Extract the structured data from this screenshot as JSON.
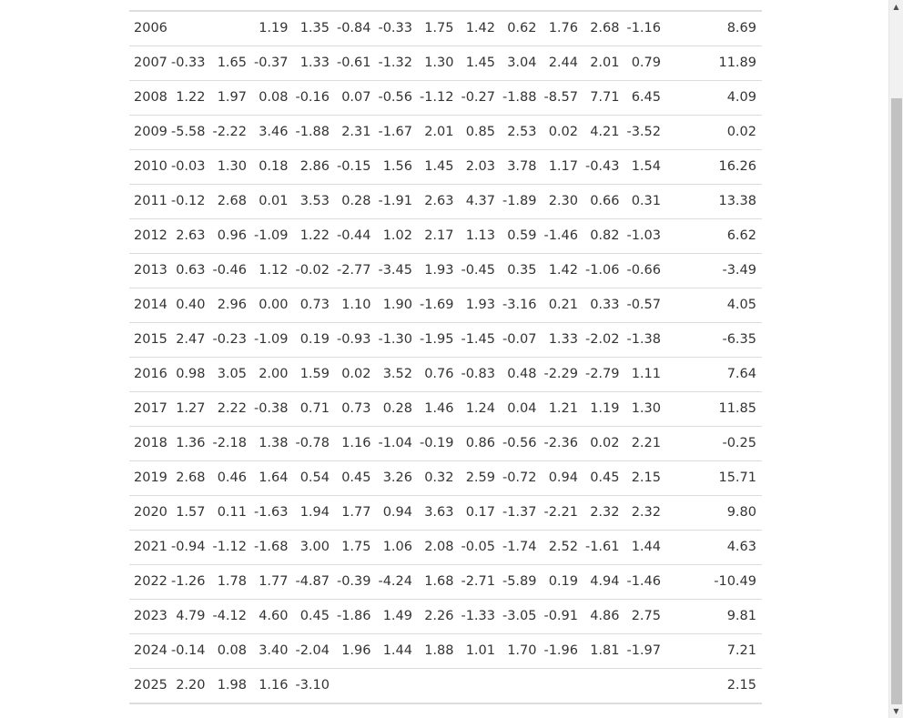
{
  "table": {
    "rows": [
      {
        "year": "2006",
        "months": [
          "",
          "",
          "1.19",
          "1.35",
          "-0.84",
          "-0.33",
          "1.75",
          "1.42",
          "0.62",
          "1.76",
          "2.68",
          "-1.16"
        ],
        "total": "8.69"
      },
      {
        "year": "2007",
        "months": [
          "-0.33",
          "1.65",
          "-0.37",
          "1.33",
          "-0.61",
          "-1.32",
          "1.30",
          "1.45",
          "3.04",
          "2.44",
          "2.01",
          "0.79"
        ],
        "total": "11.89"
      },
      {
        "year": "2008",
        "months": [
          "1.22",
          "1.97",
          "0.08",
          "-0.16",
          "0.07",
          "-0.56",
          "-1.12",
          "-0.27",
          "-1.88",
          "-8.57",
          "7.71",
          "6.45"
        ],
        "total": "4.09"
      },
      {
        "year": "2009",
        "months": [
          "-5.58",
          "-2.22",
          "3.46",
          "-1.88",
          "2.31",
          "-1.67",
          "2.01",
          "0.85",
          "2.53",
          "0.02",
          "4.21",
          "-3.52"
        ],
        "total": "0.02"
      },
      {
        "year": "2010",
        "months": [
          "-0.03",
          "1.30",
          "0.18",
          "2.86",
          "-0.15",
          "1.56",
          "1.45",
          "2.03",
          "3.78",
          "1.17",
          "-0.43",
          "1.54"
        ],
        "total": "16.26"
      },
      {
        "year": "2011",
        "months": [
          "-0.12",
          "2.68",
          "0.01",
          "3.53",
          "0.28",
          "-1.91",
          "2.63",
          "4.37",
          "-1.89",
          "2.30",
          "0.66",
          "0.31"
        ],
        "total": "13.38"
      },
      {
        "year": "2012",
        "months": [
          "2.63",
          "0.96",
          "-1.09",
          "1.22",
          "-0.44",
          "1.02",
          "2.17",
          "1.13",
          "0.59",
          "-1.46",
          "0.82",
          "-1.03"
        ],
        "total": "6.62"
      },
      {
        "year": "2013",
        "months": [
          "0.63",
          "-0.46",
          "1.12",
          "-0.02",
          "-2.77",
          "-3.45",
          "1.93",
          "-0.45",
          "0.35",
          "1.42",
          "-1.06",
          "-0.66"
        ],
        "total": "-3.49"
      },
      {
        "year": "2014",
        "months": [
          "0.40",
          "2.96",
          "0.00",
          "0.73",
          "1.10",
          "1.90",
          "-1.69",
          "1.93",
          "-3.16",
          "0.21",
          "0.33",
          "-0.57"
        ],
        "total": "4.05"
      },
      {
        "year": "2015",
        "months": [
          "2.47",
          "-0.23",
          "-1.09",
          "0.19",
          "-0.93",
          "-1.30",
          "-1.95",
          "-1.45",
          "-0.07",
          "1.33",
          "-2.02",
          "-1.38"
        ],
        "total": "-6.35"
      },
      {
        "year": "2016",
        "months": [
          "0.98",
          "3.05",
          "2.00",
          "1.59",
          "0.02",
          "3.52",
          "0.76",
          "-0.83",
          "0.48",
          "-2.29",
          "-2.79",
          "1.11"
        ],
        "total": "7.64"
      },
      {
        "year": "2017",
        "months": [
          "1.27",
          "2.22",
          "-0.38",
          "0.71",
          "0.73",
          "0.28",
          "1.46",
          "1.24",
          "0.04",
          "1.21",
          "1.19",
          "1.30"
        ],
        "total": "11.85"
      },
      {
        "year": "2018",
        "months": [
          "1.36",
          "-2.18",
          "1.38",
          "-0.78",
          "1.16",
          "-1.04",
          "-0.19",
          "0.86",
          "-0.56",
          "-2.36",
          "0.02",
          "2.21"
        ],
        "total": "-0.25"
      },
      {
        "year": "2019",
        "months": [
          "2.68",
          "0.46",
          "1.64",
          "0.54",
          "0.45",
          "3.26",
          "0.32",
          "2.59",
          "-0.72",
          "0.94",
          "0.45",
          "2.15"
        ],
        "total": "15.71"
      },
      {
        "year": "2020",
        "months": [
          "1.57",
          "0.11",
          "-1.63",
          "1.94",
          "1.77",
          "0.94",
          "3.63",
          "0.17",
          "-1.37",
          "-2.21",
          "2.32",
          "2.32"
        ],
        "total": "9.80"
      },
      {
        "year": "2021",
        "months": [
          "-0.94",
          "-1.12",
          "-1.68",
          "3.00",
          "1.75",
          "1.06",
          "2.08",
          "-0.05",
          "-1.74",
          "2.52",
          "-1.61",
          "1.44"
        ],
        "total": "4.63"
      },
      {
        "year": "2022",
        "months": [
          "-1.26",
          "1.78",
          "1.77",
          "-4.87",
          "-0.39",
          "-4.24",
          "1.68",
          "-2.71",
          "-5.89",
          "0.19",
          "4.94",
          "-1.46"
        ],
        "total": "-10.49"
      },
      {
        "year": "2023",
        "months": [
          "4.79",
          "-4.12",
          "4.60",
          "0.45",
          "-1.86",
          "1.49",
          "2.26",
          "-1.33",
          "-3.05",
          "-0.91",
          "4.86",
          "2.75"
        ],
        "total": "9.81"
      },
      {
        "year": "2024",
        "months": [
          "-0.14",
          "0.08",
          "3.40",
          "-2.04",
          "1.96",
          "1.44",
          "1.88",
          "1.01",
          "1.70",
          "-1.96",
          "1.81",
          "-1.97"
        ],
        "total": "7.21"
      },
      {
        "year": "2025",
        "months": [
          "2.20",
          "1.98",
          "1.16",
          "-3.10",
          "",
          "",
          "",
          "",
          "",
          "",
          "",
          ""
        ],
        "total": "2.15"
      }
    ]
  },
  "scrollbar": {
    "up_arrow": "▲",
    "down_arrow": "▼"
  }
}
